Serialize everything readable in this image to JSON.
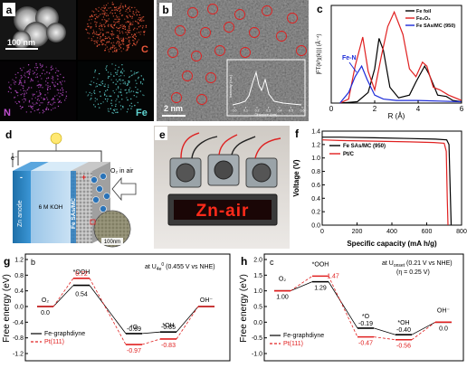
{
  "panels": {
    "a": {
      "letter": "a",
      "scale_text": "100 nm",
      "maps": [
        {
          "label": "C",
          "color": "#e8573a"
        },
        {
          "label": "N",
          "color": "#c04fd0"
        },
        {
          "label": "Fe",
          "color": "#5fd3d0"
        }
      ]
    },
    "b": {
      "letter": "b",
      "scale_text": "2 nm",
      "inset_ylabel": "Intensity (a.u.)",
      "inset_xlabel": "Distance (nm)",
      "inset_ticks": [
        "0.0",
        "0.1",
        "0.2",
        "0.3",
        "0.4",
        "0.5",
        "0.6"
      ]
    },
    "c": {
      "letter": "c",
      "annotation": "Fe-N",
      "chart_data": {
        "type": "line",
        "xlabel": "R (Å)",
        "ylabel": "|FT(k³χ(k))| (Å⁻⁴)",
        "xlim": [
          0,
          6
        ],
        "xticks": [
          "0",
          "2",
          "4",
          "6"
        ],
        "series": [
          {
            "name": "Fe foil",
            "color": "#000000",
            "points": [
              [
                0.4,
                0
              ],
              [
                1.2,
                0.1
              ],
              [
                1.7,
                0.8
              ],
              [
                2.0,
                2.6
              ],
              [
                2.2,
                4.9
              ],
              [
                2.4,
                4.0
              ],
              [
                2.7,
                1.2
              ],
              [
                3.1,
                0.4
              ],
              [
                3.6,
                0.6
              ],
              [
                3.9,
                1.6
              ],
              [
                4.3,
                2.8
              ],
              [
                4.5,
                2.2
              ],
              [
                4.9,
                0.6
              ],
              [
                5.3,
                0.5
              ],
              [
                5.6,
                0.2
              ],
              [
                6.0,
                0.1
              ]
            ]
          },
          {
            "name": "Fe₂O₃",
            "color": "#e02020",
            "points": [
              [
                0.4,
                0
              ],
              [
                0.8,
                0.3
              ],
              [
                1.1,
                2.8
              ],
              [
                1.45,
                5.0
              ],
              [
                1.7,
                2.4
              ],
              [
                2.0,
                1.0
              ],
              [
                2.3,
                3.5
              ],
              [
                2.6,
                5.8
              ],
              [
                2.9,
                6.9
              ],
              [
                3.3,
                5.2
              ],
              [
                3.6,
                2.6
              ],
              [
                3.9,
                2.0
              ],
              [
                4.2,
                3.1
              ],
              [
                4.4,
                2.8
              ],
              [
                4.7,
                1.2
              ],
              [
                5.0,
                1.0
              ],
              [
                5.4,
                0.6
              ],
              [
                6.0,
                0.2
              ]
            ]
          },
          {
            "name": "Fe SAs/MC (950)",
            "color": "#1c2bd8",
            "points": [
              [
                0.4,
                0
              ],
              [
                0.8,
                0.8
              ],
              [
                1.1,
                2.0
              ],
              [
                1.4,
                2.8
              ],
              [
                1.65,
                1.8
              ],
              [
                2.0,
                0.6
              ],
              [
                2.4,
                0.3
              ],
              [
                3.0,
                0.2
              ],
              [
                4.0,
                0.2
              ],
              [
                5.0,
                0.15
              ],
              [
                6.0,
                0.1
              ]
            ]
          }
        ]
      }
    },
    "d": {
      "letter": "d",
      "arrow_label": "O₂ in air",
      "zn_label": "Zn anode",
      "koh_label": "6 M KOH",
      "cathode_label": "Fe SAs/MC",
      "inset_scale": "100nm",
      "electron": "e⁻"
    },
    "e": {
      "letter": "e",
      "led_text": "Zn-air"
    },
    "f": {
      "letter": "f",
      "chart_data": {
        "type": "line",
        "xlabel": "Specific capacity (mA h/g)",
        "ylabel": "Voltage (V)",
        "xlim": [
          0,
          800
        ],
        "ylim": [
          0.0,
          1.4
        ],
        "xticks": [
          "0",
          "200",
          "400",
          "600",
          "800"
        ],
        "yticks": [
          "0.0",
          "0.2",
          "0.4",
          "0.6",
          "0.8",
          "1.0",
          "1.2",
          "1.4"
        ],
        "series": [
          {
            "name": "Fe SAs/MC (950)",
            "color": "#000000",
            "points": [
              [
                0,
                1.31
              ],
              [
                100,
                1.31
              ],
              [
                300,
                1.3
              ],
              [
                500,
                1.29
              ],
              [
                650,
                1.28
              ],
              [
                715,
                1.27
              ],
              [
                728,
                1.2
              ],
              [
                735,
                0.5
              ],
              [
                740,
                0.0
              ]
            ]
          },
          {
            "name": "Pt/C",
            "color": "#e02020",
            "points": [
              [
                0,
                1.27
              ],
              [
                100,
                1.26
              ],
              [
                300,
                1.25
              ],
              [
                500,
                1.24
              ],
              [
                640,
                1.23
              ],
              [
                700,
                1.22
              ],
              [
                712,
                1.1
              ],
              [
                718,
                0.4
              ],
              [
                722,
                0.0
              ]
            ]
          }
        ]
      }
    },
    "g": {
      "letter": "g",
      "sub_letter": "b",
      "condition": "at U",
      "condition_sub": "4e",
      "condition_sup": "0",
      "condition_rest": " (0.455 V vs NHE)",
      "chart_data": {
        "type": "line",
        "ylabel": "Free energy (eV)",
        "ylim": [
          -1.2,
          1.2
        ],
        "yticks": [
          "1.2",
          "0.8",
          "0.4",
          "0.0",
          "-0.4",
          "-0.8",
          "-1.2"
        ],
        "states": [
          "O₂",
          "*OOH",
          "*O",
          "*OH",
          "OH⁻"
        ],
        "series": [
          {
            "name": "Fe-graphdiyne",
            "color": "#000000",
            "values": [
              0.0,
              0.54,
              -0.69,
              -0.65,
              0.0
            ]
          },
          {
            "name": "Pt(111)",
            "color": "#e02020",
            "values": [
              0.0,
              0.72,
              -0.97,
              -0.83,
              0.0
            ]
          }
        ],
        "labels": {
          "black": [
            "0.0",
            "0.54",
            "-0.69",
            "-0.65",
            ""
          ],
          "red": [
            "",
            "0.72",
            "-0.97",
            "-0.83",
            ""
          ]
        }
      }
    },
    "h": {
      "letter": "h",
      "sub_letter": "c",
      "condition": "at U",
      "condition_sub": "onset",
      "condition_rest": " (0.21 V vs NHE)",
      "condition_line2": "(η = 0.25 V)",
      "chart_data": {
        "type": "line",
        "ylabel": "Free energy (eV)",
        "ylim": [
          -1.0,
          2.0
        ],
        "yticks": [
          "2.0",
          "1.5",
          "1.0",
          "0.5",
          "0.0",
          "-0.5",
          "-1.0"
        ],
        "states": [
          "O₂",
          "*OOH",
          "*O",
          "*OH",
          "OH⁻"
        ],
        "series": [
          {
            "name": "Fe-graphdiyne",
            "color": "#000000",
            "values": [
              1.0,
              1.29,
              -0.19,
              -0.4,
              0.0
            ]
          },
          {
            "name": "Pt(111)",
            "color": "#e02020",
            "values": [
              1.0,
              1.47,
              -0.47,
              -0.56,
              0.0
            ]
          }
        ],
        "labels": {
          "black": [
            "1.00",
            "1.29",
            "-0.19",
            "-0.40",
            "0.0"
          ],
          "red": [
            "",
            "1.47",
            "-0.47",
            "-0.56",
            ""
          ]
        }
      }
    }
  }
}
